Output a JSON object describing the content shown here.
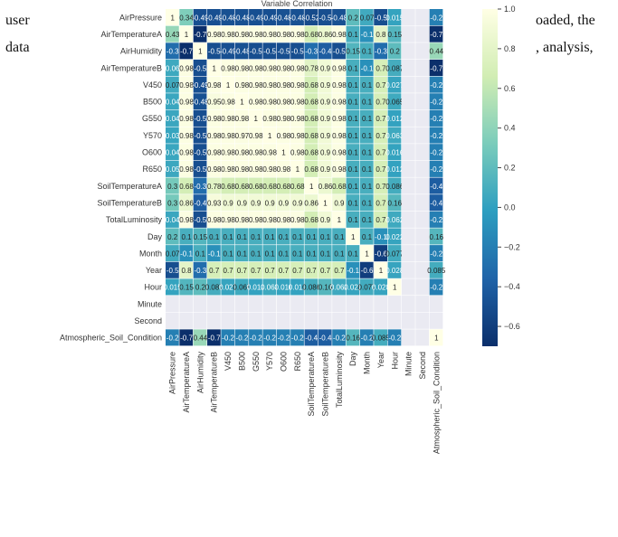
{
  "document": {
    "line1_left": "user",
    "line1_right": "oaded, the",
    "line2_left": "data",
    "line2_right": ", analysis,"
  },
  "chart_data": {
    "type": "heatmap",
    "title": "Variable Correlation",
    "variables": [
      "AirPressure",
      "AirTemperatureA",
      "AirHumidity",
      "AirTemperatureB",
      "V450",
      "B500",
      "G550",
      "Y570",
      "O600",
      "R650",
      "SoilTemperatureA",
      "SoilTemperatureB",
      "TotalLuminosity",
      "Day",
      "Month",
      "Year",
      "Hour",
      "Minute",
      "Second",
      "Atmospheric_Soil_Condition"
    ],
    "visible_columns": 20,
    "colorscale": "YlGnBu",
    "vmin": -0.7,
    "vmax": 1.0,
    "colorbar_ticks": [
      -0.6,
      -0.4,
      -0.2,
      0.0,
      0.2,
      0.4,
      0.6,
      0.8,
      1.0
    ],
    "matrix": [
      [
        1,
        0.34,
        -0.49,
        -0.49,
        -0.48,
        -0.48,
        -0.49,
        -0.49,
        -0.48,
        -0.48,
        -0.52,
        -0.5,
        -0.48,
        0.2,
        0.07,
        -0.5,
        0.015,
        null,
        null,
        -0.2
      ],
      [
        0.43,
        1,
        -0.7,
        0.98,
        0.98,
        0.98,
        0.98,
        0.98,
        0.98,
        0.98,
        0.68,
        0.86,
        0.98,
        0.1,
        -0.1,
        0.8,
        0.15,
        null,
        null,
        -0.7
      ],
      [
        -0.3,
        -0.7,
        1,
        -0.5,
        -0.49,
        -0.48,
        -0.5,
        -0.5,
        -0.5,
        -0.5,
        -0.3,
        -0.4,
        -0.5,
        0.15,
        0.1,
        -0.3,
        0.2,
        null,
        null,
        0.44
      ],
      [
        0.06,
        0.98,
        -0.5,
        1,
        0.98,
        0.98,
        0.98,
        0.98,
        0.98,
        0.98,
        0.78,
        0.9,
        0.98,
        0.1,
        -0.1,
        0.7,
        0.087,
        null,
        null,
        -0.7
      ],
      [
        0.07,
        0.98,
        -0.49,
        0.98,
        1,
        0.98,
        0.98,
        0.98,
        0.98,
        0.98,
        0.68,
        0.9,
        0.98,
        0.1,
        0.1,
        0.7,
        0.027,
        null,
        null,
        -0.2
      ],
      [
        0.04,
        0.98,
        -0.48,
        0.95,
        0.98,
        1,
        0.98,
        0.98,
        0.98,
        0.98,
        0.68,
        0.9,
        0.98,
        0.1,
        0.1,
        0.7,
        0.065,
        null,
        null,
        -0.2
      ],
      [
        0.04,
        0.98,
        -0.5,
        0.98,
        0.98,
        0.98,
        1,
        0.98,
        0.98,
        0.98,
        0.68,
        0.9,
        0.98,
        0.1,
        0.1,
        0.7,
        0.012,
        null,
        null,
        -0.2
      ],
      [
        0.03,
        0.98,
        -0.5,
        0.98,
        0.98,
        0.97,
        0.98,
        1,
        0.98,
        0.98,
        0.68,
        0.9,
        0.98,
        0.1,
        0.1,
        0.7,
        0.063,
        null,
        null,
        -0.2
      ],
      [
        0.04,
        0.98,
        -0.5,
        0.98,
        0.98,
        0.98,
        0.98,
        0.98,
        1,
        0.98,
        0.68,
        0.9,
        0.98,
        0.1,
        0.1,
        0.7,
        0.016,
        null,
        null,
        -0.2
      ],
      [
        0.05,
        0.98,
        -0.5,
        0.98,
        0.98,
        0.98,
        0.98,
        0.98,
        0.98,
        1,
        0.68,
        0.9,
        0.98,
        0.1,
        0.1,
        0.7,
        0.012,
        null,
        null,
        -0.2
      ],
      [
        0.3,
        0.68,
        -0.3,
        0.78,
        0.68,
        0.68,
        0.68,
        0.68,
        0.68,
        0.68,
        1,
        0.86,
        0.68,
        0.1,
        0.1,
        0.7,
        0.086,
        null,
        null,
        -0.4
      ],
      [
        0.3,
        0.86,
        -0.4,
        0.93,
        0.9,
        0.9,
        0.9,
        0.9,
        0.9,
        0.9,
        0.86,
        1,
        0.9,
        0.1,
        0.1,
        0.7,
        0.16,
        null,
        null,
        -0.4
      ],
      [
        0.04,
        0.98,
        -0.5,
        0.98,
        0.98,
        0.98,
        0.98,
        0.98,
        0.98,
        0.98,
        0.68,
        0.9,
        1,
        0.1,
        0.1,
        0.7,
        0.062,
        null,
        null,
        -0.2
      ],
      [
        0.2,
        0.1,
        0.15,
        0.1,
        0.1,
        0.1,
        0.1,
        0.1,
        0.1,
        0.1,
        0.1,
        0.1,
        0.1,
        1,
        0.1,
        -0.1,
        0.022,
        null,
        null,
        0.16
      ],
      [
        0.07,
        -0.1,
        0.1,
        -0.1,
        0.1,
        0.1,
        0.1,
        0.1,
        0.1,
        0.1,
        0.1,
        0.1,
        0.1,
        0.1,
        1,
        -0.6,
        0.077,
        null,
        null,
        -0.2
      ],
      [
        -0.5,
        0.8,
        -0.3,
        0.7,
        0.7,
        0.7,
        0.7,
        0.7,
        0.7,
        0.7,
        0.7,
        0.7,
        0.7,
        -0.1,
        -0.6,
        1,
        0.028,
        null,
        null,
        0.085
      ],
      [
        0.015,
        0.15,
        0.2,
        0.087,
        0.027,
        0.065,
        0.012,
        0.063,
        0.016,
        0.012,
        0.086,
        0.16,
        0.062,
        0.022,
        0.077,
        0.028,
        1,
        null,
        null,
        -0.2
      ],
      [
        null,
        null,
        null,
        null,
        null,
        null,
        null,
        null,
        null,
        null,
        null,
        null,
        null,
        null,
        null,
        null,
        null,
        null,
        null,
        null
      ],
      [
        null,
        null,
        null,
        null,
        null,
        null,
        null,
        null,
        null,
        null,
        null,
        null,
        null,
        null,
        null,
        null,
        null,
        null,
        null,
        null
      ],
      [
        -0.2,
        -0.7,
        0.44,
        -0.7,
        -0.2,
        -0.2,
        -0.2,
        -0.2,
        -0.2,
        -0.2,
        -0.4,
        -0.4,
        -0.2,
        0.16,
        -0.2,
        0.085,
        -0.2,
        null,
        null,
        1
      ]
    ],
    "nan_color": "#eaeaf2"
  }
}
